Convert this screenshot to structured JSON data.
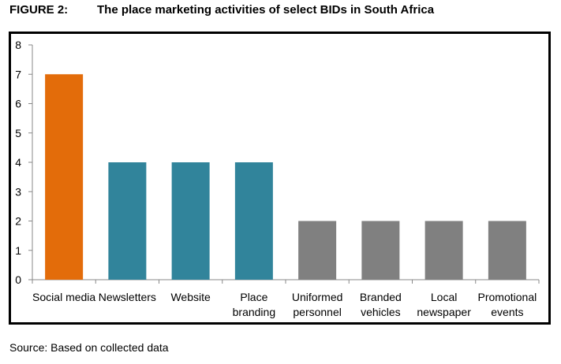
{
  "figure": {
    "label": "FIGURE 2:",
    "title": "The place marketing activities of select BIDs in South Africa"
  },
  "source_note": "Source: Based on collected data",
  "colors": {
    "highlight": "#E36C0A",
    "teal": "#31849B",
    "gray": "#808080",
    "axis": "#888888"
  },
  "chart_data": {
    "type": "bar",
    "title": "The place marketing activities of select BIDs in South Africa",
    "xlabel": "",
    "ylabel": "",
    "ylim": [
      0,
      8
    ],
    "yticks": [
      0,
      1,
      2,
      3,
      4,
      5,
      6,
      7,
      8
    ],
    "grid": false,
    "legend": "none",
    "categories": [
      [
        "Social media"
      ],
      [
        "Newsletters"
      ],
      [
        "Website"
      ],
      [
        "Place",
        "branding"
      ],
      [
        "Uniformed",
        "personnel"
      ],
      [
        "Branded",
        "vehicles"
      ],
      [
        "Local",
        "newspaper"
      ],
      [
        "Promotional",
        "events"
      ]
    ],
    "values": [
      7,
      4,
      4,
      4,
      2,
      2,
      2,
      2
    ],
    "bar_colors": [
      "#E36C0A",
      "#31849B",
      "#31849B",
      "#31849B",
      "#808080",
      "#808080",
      "#808080",
      "#808080"
    ]
  }
}
